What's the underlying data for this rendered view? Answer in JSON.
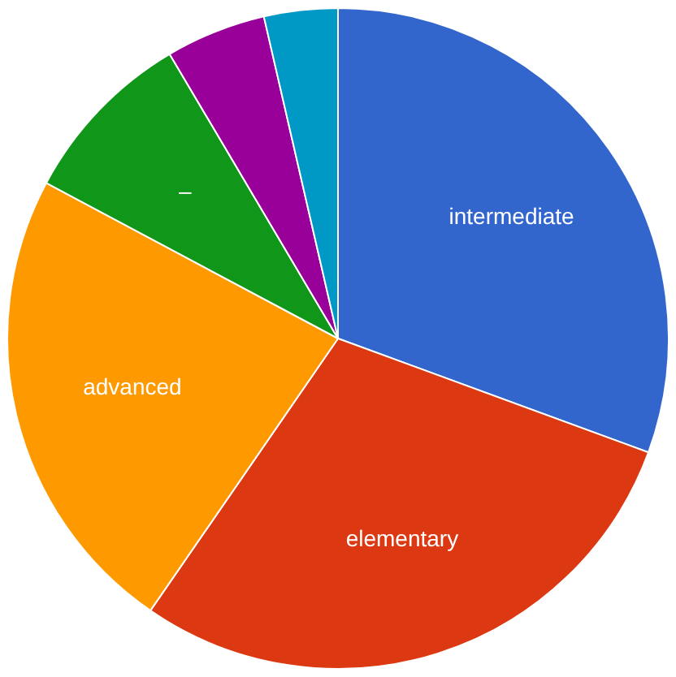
{
  "chart_data": {
    "type": "pie",
    "categories": [
      "intermediate",
      "elementary",
      "advanced",
      "–",
      null,
      null
    ],
    "values": [
      30.6,
      29,
      23.2,
      8.7,
      4.9,
      3.6
    ],
    "colors": [
      "#3366cc",
      "#dc3912",
      "#ff9900",
      "#109618",
      "#990099",
      "#0099c6"
    ],
    "legend": false
  }
}
